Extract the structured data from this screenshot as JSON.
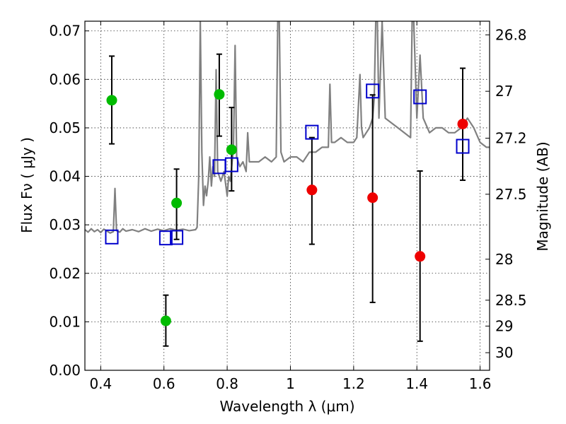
{
  "chart_data": {
    "type": "scatter",
    "xlabel": "Wavelength  λ (μm)",
    "ylabel": "Flux  Fν  ( μJy )",
    "y2label": "Magnitude (AB)",
    "xlim": [
      0.35,
      1.63
    ],
    "ylim": [
      0.0,
      0.072
    ],
    "x_ticks": [
      0.4,
      0.6,
      0.8,
      1.0,
      1.2,
      1.4,
      1.6
    ],
    "x_tick_labels": [
      "0.4",
      "0.6",
      "0.8",
      "1",
      "1.2",
      "1.4",
      "1.6"
    ],
    "y_ticks": [
      0.0,
      0.01,
      0.02,
      0.03,
      0.04,
      0.05,
      0.06,
      0.07
    ],
    "y_tick_labels": [
      "0.00",
      "0.01",
      "0.02",
      "0.03",
      "0.04",
      "0.05",
      "0.06",
      "0.07"
    ],
    "y2_ticks": [
      26.8,
      27.0,
      27.2,
      27.5,
      28.0,
      28.5,
      29.0,
      30.0
    ],
    "y2_tick_labels": [
      "26.8",
      "27",
      "27.2",
      "27.5",
      "28",
      "28.5",
      "29",
      "30"
    ],
    "grid": true,
    "series": [
      {
        "marker": "filled-circle",
        "color": "#00bb00",
        "points": [
          {
            "x": 0.435,
            "y": 0.0557,
            "err_lo": 0.0467,
            "err_hi": 0.0648
          },
          {
            "x": 0.606,
            "y": 0.0102,
            "err_lo": 0.005,
            "err_hi": 0.0155
          },
          {
            "x": 0.64,
            "y": 0.0345,
            "err_lo": 0.027,
            "err_hi": 0.0415
          },
          {
            "x": 0.775,
            "y": 0.0569,
            "err_lo": 0.0483,
            "err_hi": 0.0652
          },
          {
            "x": 0.814,
            "y": 0.0455,
            "err_lo": 0.037,
            "err_hi": 0.0542
          }
        ]
      },
      {
        "marker": "filled-circle",
        "color": "#ee0000",
        "points": [
          {
            "x": 1.068,
            "y": 0.0372,
            "err_lo": 0.026,
            "err_hi": 0.048
          },
          {
            "x": 1.26,
            "y": 0.0356,
            "err_lo": 0.014,
            "err_hi": 0.0568
          },
          {
            "x": 1.41,
            "y": 0.0235,
            "err_lo": 0.006,
            "err_hi": 0.0411
          },
          {
            "x": 1.545,
            "y": 0.0508,
            "err_lo": 0.0392,
            "err_hi": 0.0623
          }
        ]
      },
      {
        "marker": "open-square",
        "color": "#0000cc",
        "points": [
          {
            "x": 0.435,
            "y": 0.0275
          },
          {
            "x": 0.606,
            "y": 0.0273
          },
          {
            "x": 0.64,
            "y": 0.0274
          },
          {
            "x": 0.775,
            "y": 0.042
          },
          {
            "x": 0.814,
            "y": 0.0424
          },
          {
            "x": 1.068,
            "y": 0.0491
          },
          {
            "x": 1.26,
            "y": 0.0576
          },
          {
            "x": 1.41,
            "y": 0.0564
          },
          {
            "x": 1.545,
            "y": 0.0462
          }
        ]
      },
      {
        "marker": "line",
        "color": "#808080",
        "points": [
          [
            0.35,
            0.029
          ],
          [
            0.36,
            0.0285
          ],
          [
            0.37,
            0.0292
          ],
          [
            0.38,
            0.0286
          ],
          [
            0.39,
            0.029
          ],
          [
            0.4,
            0.0284
          ],
          [
            0.41,
            0.0291
          ],
          [
            0.42,
            0.0287
          ],
          [
            0.43,
            0.0283
          ],
          [
            0.44,
            0.0286
          ],
          [
            0.445,
            0.0375
          ],
          [
            0.45,
            0.0288
          ],
          [
            0.46,
            0.0285
          ],
          [
            0.47,
            0.0292
          ],
          [
            0.48,
            0.0287
          ],
          [
            0.5,
            0.029
          ],
          [
            0.52,
            0.0286
          ],
          [
            0.54,
            0.0292
          ],
          [
            0.56,
            0.0287
          ],
          [
            0.58,
            0.0291
          ],
          [
            0.6,
            0.0288
          ],
          [
            0.62,
            0.0292
          ],
          [
            0.64,
            0.0289
          ],
          [
            0.66,
            0.0291
          ],
          [
            0.68,
            0.0288
          ],
          [
            0.7,
            0.029
          ],
          [
            0.705,
            0.0295
          ],
          [
            0.71,
            0.04
          ],
          [
            0.715,
            0.072
          ],
          [
            0.72,
            0.045
          ],
          [
            0.725,
            0.034
          ],
          [
            0.73,
            0.038
          ],
          [
            0.735,
            0.036
          ],
          [
            0.74,
            0.039
          ],
          [
            0.745,
            0.044
          ],
          [
            0.75,
            0.038
          ],
          [
            0.755,
            0.042
          ],
          [
            0.76,
            0.04
          ],
          [
            0.765,
            0.062
          ],
          [
            0.77,
            0.041
          ],
          [
            0.78,
            0.039
          ],
          [
            0.79,
            0.041
          ],
          [
            0.8,
            0.036
          ],
          [
            0.805,
            0.04
          ],
          [
            0.81,
            0.039
          ],
          [
            0.82,
            0.046
          ],
          [
            0.825,
            0.067
          ],
          [
            0.83,
            0.044
          ],
          [
            0.84,
            0.042
          ],
          [
            0.85,
            0.043
          ],
          [
            0.86,
            0.041
          ],
          [
            0.865,
            0.049
          ],
          [
            0.87,
            0.043
          ],
          [
            0.88,
            0.043
          ],
          [
            0.9,
            0.043
          ],
          [
            0.92,
            0.044
          ],
          [
            0.94,
            0.043
          ],
          [
            0.955,
            0.044
          ],
          [
            0.96,
            0.072
          ],
          [
            0.965,
            0.072
          ],
          [
            0.97,
            0.045
          ],
          [
            0.98,
            0.043
          ],
          [
            1.0,
            0.044
          ],
          [
            1.02,
            0.044
          ],
          [
            1.04,
            0.043
          ],
          [
            1.06,
            0.045
          ],
          [
            1.08,
            0.045
          ],
          [
            1.1,
            0.046
          ],
          [
            1.12,
            0.046
          ],
          [
            1.125,
            0.059
          ],
          [
            1.13,
            0.047
          ],
          [
            1.14,
            0.047
          ],
          [
            1.16,
            0.048
          ],
          [
            1.18,
            0.047
          ],
          [
            1.2,
            0.047
          ],
          [
            1.21,
            0.048
          ],
          [
            1.22,
            0.061
          ],
          [
            1.225,
            0.05
          ],
          [
            1.23,
            0.048
          ],
          [
            1.24,
            0.049
          ],
          [
            1.25,
            0.05
          ],
          [
            1.26,
            0.052
          ],
          [
            1.265,
            0.056
          ],
          [
            1.27,
            0.072
          ],
          [
            1.275,
            0.072
          ],
          [
            1.28,
            0.052
          ],
          [
            1.29,
            0.072
          ],
          [
            1.3,
            0.052
          ],
          [
            1.32,
            0.051
          ],
          [
            1.34,
            0.05
          ],
          [
            1.36,
            0.049
          ],
          [
            1.38,
            0.048
          ],
          [
            1.385,
            0.072
          ],
          [
            1.39,
            0.072
          ],
          [
            1.4,
            0.052
          ],
          [
            1.41,
            0.065
          ],
          [
            1.42,
            0.052
          ],
          [
            1.44,
            0.049
          ],
          [
            1.46,
            0.05
          ],
          [
            1.48,
            0.05
          ],
          [
            1.5,
            0.049
          ],
          [
            1.52,
            0.049
          ],
          [
            1.54,
            0.05
          ],
          [
            1.55,
            0.051
          ],
          [
            1.56,
            0.052
          ],
          [
            1.58,
            0.05
          ],
          [
            1.6,
            0.047
          ],
          [
            1.62,
            0.046
          ],
          [
            1.63,
            0.046
          ]
        ]
      }
    ]
  }
}
